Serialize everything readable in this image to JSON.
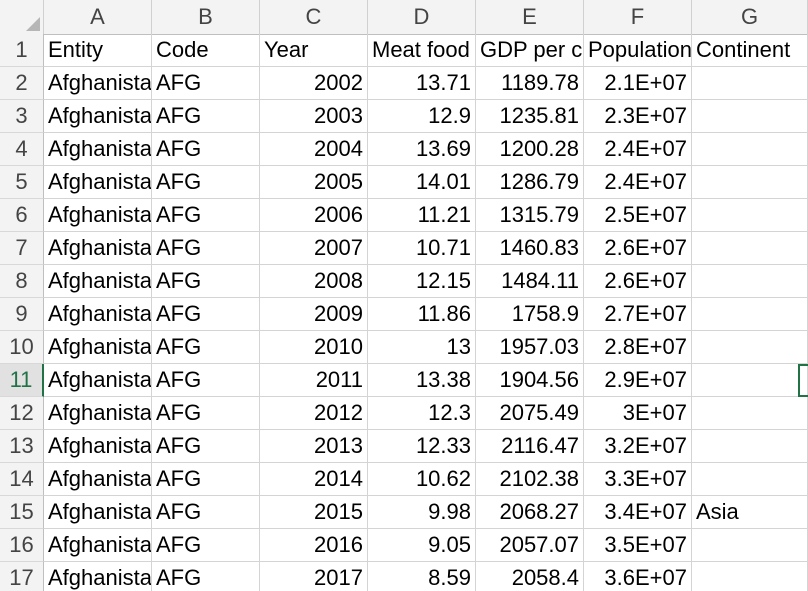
{
  "columns": [
    "A",
    "B",
    "C",
    "D",
    "E",
    "F",
    "G"
  ],
  "rows": [
    {
      "n": "1",
      "a": "Entity",
      "b": "Code",
      "c": "Year",
      "d": "Meat food",
      "e": "GDP per ca",
      "f": "Population",
      "g": "Continent"
    },
    {
      "n": "2",
      "a": "Afghanista",
      "b": "AFG",
      "c": "2002",
      "d": "13.71",
      "e": "1189.78",
      "f": "2.1E+07",
      "g": ""
    },
    {
      "n": "3",
      "a": "Afghanista",
      "b": "AFG",
      "c": "2003",
      "d": "12.9",
      "e": "1235.81",
      "f": "2.3E+07",
      "g": ""
    },
    {
      "n": "4",
      "a": "Afghanista",
      "b": "AFG",
      "c": "2004",
      "d": "13.69",
      "e": "1200.28",
      "f": "2.4E+07",
      "g": ""
    },
    {
      "n": "5",
      "a": "Afghanista",
      "b": "AFG",
      "c": "2005",
      "d": "14.01",
      "e": "1286.79",
      "f": "2.4E+07",
      "g": ""
    },
    {
      "n": "6",
      "a": "Afghanista",
      "b": "AFG",
      "c": "2006",
      "d": "11.21",
      "e": "1315.79",
      "f": "2.5E+07",
      "g": ""
    },
    {
      "n": "7",
      "a": "Afghanista",
      "b": "AFG",
      "c": "2007",
      "d": "10.71",
      "e": "1460.83",
      "f": "2.6E+07",
      "g": ""
    },
    {
      "n": "8",
      "a": "Afghanista",
      "b": "AFG",
      "c": "2008",
      "d": "12.15",
      "e": "1484.11",
      "f": "2.6E+07",
      "g": ""
    },
    {
      "n": "9",
      "a": "Afghanista",
      "b": "AFG",
      "c": "2009",
      "d": "11.86",
      "e": "1758.9",
      "f": "2.7E+07",
      "g": ""
    },
    {
      "n": "10",
      "a": "Afghanista",
      "b": "AFG",
      "c": "2010",
      "d": "13",
      "e": "1957.03",
      "f": "2.8E+07",
      "g": ""
    },
    {
      "n": "11",
      "a": "Afghanista",
      "b": "AFG",
      "c": "2011",
      "d": "13.38",
      "e": "1904.56",
      "f": "2.9E+07",
      "g": ""
    },
    {
      "n": "12",
      "a": "Afghanista",
      "b": "AFG",
      "c": "2012",
      "d": "12.3",
      "e": "2075.49",
      "f": "3E+07",
      "g": ""
    },
    {
      "n": "13",
      "a": "Afghanista",
      "b": "AFG",
      "c": "2013",
      "d": "12.33",
      "e": "2116.47",
      "f": "3.2E+07",
      "g": ""
    },
    {
      "n": "14",
      "a": "Afghanista",
      "b": "AFG",
      "c": "2014",
      "d": "10.62",
      "e": "2102.38",
      "f": "3.3E+07",
      "g": ""
    },
    {
      "n": "15",
      "a": "Afghanista",
      "b": "AFG",
      "c": "2015",
      "d": "9.98",
      "e": "2068.27",
      "f": "3.4E+07",
      "g": "Asia"
    },
    {
      "n": "16",
      "a": "Afghanista",
      "b": "AFG",
      "c": "2016",
      "d": "9.05",
      "e": "2057.07",
      "f": "3.5E+07",
      "g": ""
    },
    {
      "n": "17",
      "a": "Afghanista",
      "b": "AFG",
      "c": "2017",
      "d": "8.59",
      "e": "2058.4",
      "f": "3.6E+07",
      "g": ""
    }
  ],
  "active_row": "11",
  "accent_color": "#217346"
}
